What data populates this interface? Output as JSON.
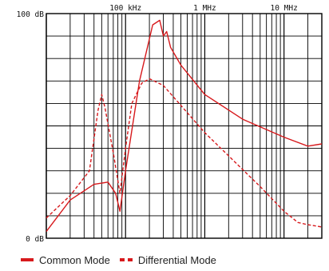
{
  "chart_data": {
    "type": "line",
    "title": "",
    "xscale": "log",
    "xlim": [
      10000,
      30000000
    ],
    "ylim": [
      0,
      100
    ],
    "grid": true,
    "x_tick_labels": [
      {
        "x": 100000,
        "label": "100 kHz"
      },
      {
        "x": 1000000,
        "label": "1 MHz"
      },
      {
        "x": 10000000,
        "label": "10 MHz"
      }
    ],
    "y_tick_labels": [
      {
        "y": 100,
        "label": "100 dB"
      },
      {
        "y": 0,
        "label": "0 dB"
      }
    ],
    "legend_position": "bottom",
    "series": [
      {
        "name": "Common Mode",
        "style": "solid",
        "color": "#d7191c",
        "points": [
          [
            10000,
            3
          ],
          [
            20000,
            17
          ],
          [
            40000,
            24
          ],
          [
            60000,
            25
          ],
          [
            75000,
            20
          ],
          [
            85000,
            12
          ],
          [
            100000,
            30
          ],
          [
            150000,
            70
          ],
          [
            220000,
            95
          ],
          [
            270000,
            97
          ],
          [
            300000,
            90
          ],
          [
            330000,
            92
          ],
          [
            370000,
            85
          ],
          [
            500000,
            77
          ],
          [
            1000000,
            64
          ],
          [
            3000000,
            53
          ],
          [
            10000000,
            45
          ],
          [
            20000000,
            41
          ],
          [
            30000000,
            42
          ]
        ]
      },
      {
        "name": "Differential Mode",
        "style": "dashed",
        "color": "#d7191c",
        "points": [
          [
            10000,
            9
          ],
          [
            20000,
            19
          ],
          [
            35000,
            30
          ],
          [
            45000,
            57
          ],
          [
            50000,
            64
          ],
          [
            55000,
            58
          ],
          [
            70000,
            38
          ],
          [
            85000,
            20
          ],
          [
            100000,
            40
          ],
          [
            120000,
            60
          ],
          [
            160000,
            69
          ],
          [
            200000,
            71
          ],
          [
            300000,
            68
          ],
          [
            1000000,
            47
          ],
          [
            5000000,
            23
          ],
          [
            10000000,
            12
          ],
          [
            15000000,
            7
          ],
          [
            20000000,
            6
          ],
          [
            30000000,
            5
          ]
        ]
      }
    ]
  }
}
